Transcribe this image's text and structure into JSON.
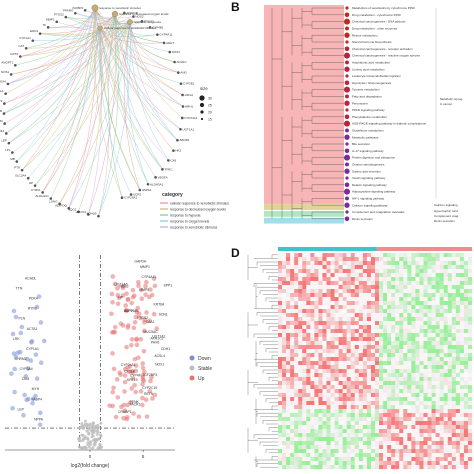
{
  "panels": {
    "a": {
      "legend_title": "category",
      "categories": [
        {
          "name": "cellular response to xenobiotic stimulus",
          "color": "#f08c8c"
        },
        {
          "name": "response to decreased oxygen levels",
          "color": "#c8b96e"
        },
        {
          "name": "response to hypoxia",
          "color": "#7fc98a"
        },
        {
          "name": "response to oxygen levels",
          "color": "#7ec8e3"
        },
        {
          "name": "response to xenobiotic stimulus",
          "color": "#c9a7e6"
        }
      ],
      "size_title": "size",
      "size_values": [
        "30",
        "25",
        "20",
        "15"
      ],
      "top_terms": [
        "response to xenobiotic stimulus",
        "response to decreased oxygen levels",
        "response to hypoxia",
        "cellular response to xenobiotic stimulus"
      ],
      "genes_left": [
        "IGFBP2",
        "PPARG",
        "PTGS2",
        "MMP1",
        "TF",
        "EDN1",
        "CYP1A1",
        "CAT",
        "GPX3",
        "ANGPT1",
        "NOS1",
        "NOX4",
        "ACSL1",
        "BMP2",
        "CFB",
        "CHRM3",
        "EIF4",
        "LEP",
        "LPL",
        "MB",
        "PTN",
        "SLC2A4",
        "HP",
        "CYR61",
        "ALDH1A1",
        "LONG",
        "ADIPOQ",
        "NQO1",
        "HMOX1",
        "ADH1B"
      ],
      "genes_right": [
        "ADIPOR",
        "NOS2",
        "PTGS2",
        "CYP4B1",
        "CYP4A11",
        "ADH7",
        "NOS3",
        "ADH1C",
        "ANG",
        "CYP2E1",
        "HIF1A",
        "HRH1",
        "CYP24A1",
        "UGT1A1",
        "ABCB1",
        "HK2",
        "CA9",
        "TFRC",
        "VEGFA",
        "ALDH3A1",
        "HSPA1",
        "UCP2",
        "CYP26A1"
      ]
    },
    "b": {
      "pathways": [
        "Metabolism of xenobiotics by cytochrome P450",
        "Drug metabolism - cytochrome P450",
        "Chemical carcinogenesis - DNA adducts",
        "Drug metabolism - other enzymes",
        "Retinol metabolism",
        "Steroid hormone biosynthesis",
        "Chemical carcinogenesis - receptor activation",
        "Chemical carcinogenesis - reactive oxygen species",
        "Arachidonic acid metabolism",
        "Linoleic acid metabolism",
        "Leukocyte transendothelial migration",
        "Glycolysis / Gluconeogenesis",
        "Tyrosine metabolism",
        "Fatty acid degradation",
        "Peroxisome",
        "PPAR signaling pathway",
        "Phenylalanine metabolism",
        "AGE-RAGE signaling pathway in diabetic complications",
        "Glutathione metabolism",
        "Metabolic pathways",
        "Bile secretion",
        "IL-17 signaling pathway",
        "Protein digestion and absorption",
        "Ovarian steroidogenesis",
        "Gastric acid secretion",
        "Insulin signaling pathway",
        "Relaxin signaling pathway",
        "Adipocytokine signaling pathway",
        "HIF-1 signaling pathway",
        "Calcium signaling pathway",
        "Complement and coagulation cascades",
        "Renin secretion"
      ],
      "groups": [
        "Metabolic reprog in cancer",
        "Calcium signaling",
        "Hypertrophic card",
        "Complement coag",
        "Renin secretion"
      ]
    },
    "c": {
      "xlabel": "log2(fold change)",
      "legend": [
        {
          "name": "Down",
          "color": "#7b8fd6"
        },
        {
          "name": "Stable",
          "color": "#bdbdbd"
        },
        {
          "name": "Up",
          "color": "#e57373"
        }
      ],
      "x_ticks": [
        "0",
        "5"
      ],
      "up_genes": [
        "GAPDH",
        "MMP1",
        "CYP4A11",
        "UGT1A6",
        "SPP1",
        "NOS2",
        "MMP9",
        "HP",
        "KRT6A",
        "ALPP",
        "CYP26B1",
        "SCN1",
        "PTGS2",
        "SAA1",
        "UGT1A1",
        "MUC5AC",
        "AKR1C2",
        "PAX6",
        "CDH1",
        "ACSL4",
        "CYP24A1",
        "NOX1",
        "CXCL8",
        "CYP4F",
        "IGF2BP3",
        "KRT19",
        "RETN",
        "CYP2C19",
        "PENK",
        "TACR1",
        "CRABP1"
      ],
      "down_genes": [
        "ACADL",
        "TTN",
        "PDK4",
        "RYR2",
        "PLN",
        "ACTA1",
        "LRK",
        "CYP1A1",
        "CHRM2",
        "CYP3A4",
        "CKM",
        "MYH",
        "FABP4",
        "LEP",
        "NPPA"
      ]
    },
    "d": {
      "top_bar_colors": [
        "#3fc4cc",
        "#f08c8c"
      ]
    }
  },
  "labels": {
    "a": "",
    "b": "B",
    "c": "",
    "d": "D"
  },
  "chart_data": {
    "type": "scatter",
    "title": "",
    "xlabel": "log2(fold change)",
    "ylabel": "",
    "series": [
      {
        "name": "Down",
        "points": [
          [
            -6.5,
            5.8
          ],
          [
            -5.8,
            5.2
          ],
          [
            -5.4,
            4.9
          ],
          [
            -6.1,
            4.1
          ],
          [
            -5.2,
            3.6
          ],
          [
            -6.6,
            3.1
          ],
          [
            -6.0,
            2.6
          ],
          [
            -5.5,
            2.1
          ],
          [
            -6.3,
            1.6
          ],
          [
            -6.8,
            0.6
          ]
        ]
      },
      {
        "name": "Up",
        "points": [
          [
            3.5,
            7.0
          ],
          [
            4.4,
            6.4
          ],
          [
            4.8,
            6.1
          ],
          [
            3.2,
            6.3
          ],
          [
            2.9,
            5.5
          ],
          [
            3.8,
            5.2
          ],
          [
            4.1,
            4.7
          ],
          [
            2.6,
            4.4
          ],
          [
            3.4,
            3.9
          ],
          [
            5.2,
            3.6
          ],
          [
            2.5,
            3.3
          ],
          [
            3.1,
            2.7
          ],
          [
            4.0,
            2.4
          ],
          [
            2.8,
            1.9
          ],
          [
            3.3,
            1.4
          ]
        ]
      }
    ],
    "legend_position": "right"
  }
}
